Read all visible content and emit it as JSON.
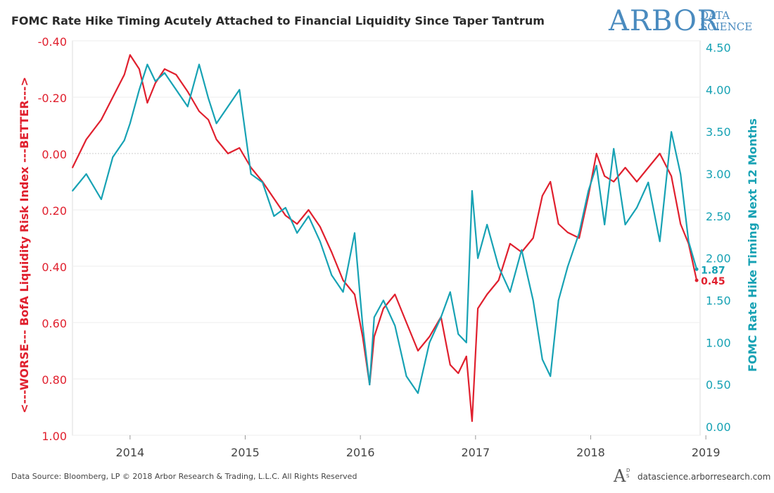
{
  "header": {
    "title": "FOMC Rate Hike Timing Acutely Attached to Financial Liquidity Since Taper Tantrum",
    "logo_word": "ARBOR",
    "logo_sub_line1": "DATA",
    "logo_sub_line2": "SCIENCE"
  },
  "footer": {
    "source": "Data Source: Bloomberg, LP © 2018 Arbor Research & Trading, L.L.C. All Rights Reserved",
    "logo_mark": "A",
    "logo_mark_sub": "D S",
    "url": "datascience.arborresearch.com"
  },
  "colors": {
    "red": "#e0202e",
    "teal": "#17a2b4",
    "logo": "#4a8bbf",
    "grid": "#eeeeee",
    "zero_line": "#cccccc"
  },
  "chart_data": {
    "type": "line",
    "title": "FOMC Rate Hike Timing Acutely Attached to Financial Liquidity Since Taper Tantrum",
    "x_ticks": [
      "2014",
      "2015",
      "2016",
      "2017",
      "2018",
      "2019"
    ],
    "x_range": [
      2013.5,
      2018.95
    ],
    "y_left": {
      "label": "<---WORSE--- BofA Liquidity Risk Index ---BETTER--->",
      "inverted": true,
      "range": [
        -0.4,
        1.0
      ],
      "ticks": [
        -0.4,
        -0.2,
        0.0,
        0.2,
        0.4,
        0.6,
        0.8,
        1.0
      ],
      "tick_labels": [
        "-0.40",
        "-0.20",
        "0.00",
        "0.20",
        "0.40",
        "0.60",
        "0.80",
        "1.00"
      ]
    },
    "y_right": {
      "label": "FOMC Rate Hike Timing Next 12 Months",
      "range": [
        -0.1,
        4.58
      ],
      "ticks": [
        0.0,
        0.5,
        1.0,
        1.5,
        2.0,
        2.5,
        3.0,
        3.5,
        4.0,
        4.5
      ],
      "tick_labels": [
        "0.00",
        "0.50",
        "1.00",
        "1.50",
        "2.00",
        "2.50",
        "3.00",
        "3.50",
        "4.00",
        "4.50"
      ]
    },
    "grid": true,
    "series": [
      {
        "name": "BofA Liquidity Risk Index",
        "axis": "left",
        "color": "#e0202e",
        "x": [
          2013.5,
          2013.62,
          2013.75,
          2013.85,
          2013.95,
          2014.0,
          2014.08,
          2014.15,
          2014.22,
          2014.3,
          2014.4,
          2014.5,
          2014.6,
          2014.68,
          2014.75,
          2014.85,
          2014.95,
          2015.05,
          2015.15,
          2015.25,
          2015.35,
          2015.45,
          2015.55,
          2015.65,
          2015.75,
          2015.85,
          2015.95,
          2016.02,
          2016.08,
          2016.12,
          2016.2,
          2016.3,
          2016.4,
          2016.5,
          2016.6,
          2016.7,
          2016.78,
          2016.85,
          2016.92,
          2016.97,
          2017.02,
          2017.1,
          2017.2,
          2017.3,
          2017.4,
          2017.5,
          2017.58,
          2017.65,
          2017.72,
          2017.8,
          2017.9,
          2017.98,
          2018.05,
          2018.12,
          2018.2,
          2018.3,
          2018.4,
          2018.5,
          2018.6,
          2018.7,
          2018.78,
          2018.85,
          2018.92
        ],
        "values": [
          0.05,
          -0.05,
          -0.12,
          -0.2,
          -0.28,
          -0.35,
          -0.3,
          -0.18,
          -0.25,
          -0.3,
          -0.28,
          -0.22,
          -0.15,
          -0.12,
          -0.05,
          0.0,
          -0.02,
          0.05,
          0.1,
          0.16,
          0.22,
          0.25,
          0.2,
          0.26,
          0.35,
          0.45,
          0.5,
          0.65,
          0.82,
          0.65,
          0.55,
          0.5,
          0.6,
          0.7,
          0.65,
          0.58,
          0.75,
          0.78,
          0.72,
          0.95,
          0.55,
          0.5,
          0.45,
          0.32,
          0.35,
          0.3,
          0.15,
          0.1,
          0.25,
          0.28,
          0.3,
          0.15,
          0.0,
          0.08,
          0.1,
          0.05,
          0.1,
          0.05,
          0.0,
          0.08,
          0.25,
          0.32,
          0.45
        ]
      },
      {
        "name": "FOMC Rate Hike Timing Next 12 Months",
        "axis": "right",
        "color": "#17a2b4",
        "x": [
          2013.5,
          2013.62,
          2013.75,
          2013.85,
          2013.95,
          2014.0,
          2014.08,
          2014.15,
          2014.22,
          2014.3,
          2014.4,
          2014.5,
          2014.6,
          2014.68,
          2014.75,
          2014.85,
          2014.95,
          2015.05,
          2015.15,
          2015.25,
          2015.35,
          2015.45,
          2015.55,
          2015.65,
          2015.75,
          2015.85,
          2015.95,
          2016.02,
          2016.08,
          2016.12,
          2016.2,
          2016.3,
          2016.4,
          2016.5,
          2016.6,
          2016.7,
          2016.78,
          2016.85,
          2016.92,
          2016.97,
          2017.02,
          2017.1,
          2017.2,
          2017.3,
          2017.4,
          2017.5,
          2017.58,
          2017.65,
          2017.72,
          2017.8,
          2017.9,
          2017.98,
          2018.05,
          2018.12,
          2018.2,
          2018.3,
          2018.4,
          2018.5,
          2018.6,
          2018.7,
          2018.78,
          2018.85,
          2018.92
        ],
        "values": [
          2.8,
          3.0,
          2.7,
          3.2,
          3.4,
          3.6,
          4.0,
          4.3,
          4.1,
          4.2,
          4.0,
          3.8,
          4.3,
          3.9,
          3.6,
          3.8,
          4.0,
          3.0,
          2.9,
          2.5,
          2.6,
          2.3,
          2.5,
          2.2,
          1.8,
          1.6,
          2.3,
          1.2,
          0.5,
          1.3,
          1.5,
          1.2,
          0.6,
          0.4,
          1.0,
          1.3,
          1.6,
          1.1,
          1.0,
          2.8,
          2.0,
          2.4,
          1.9,
          1.6,
          2.1,
          1.5,
          0.8,
          0.6,
          1.5,
          1.9,
          2.3,
          2.8,
          3.1,
          2.4,
          3.3,
          2.4,
          2.6,
          2.9,
          2.2,
          3.5,
          3.0,
          2.2,
          1.87
        ]
      }
    ],
    "end_labels": [
      {
        "series": "FOMC Rate Hike Timing Next 12 Months",
        "text": "1.87",
        "value": 1.87
      },
      {
        "series": "BofA Liquidity Risk Index",
        "text": "0.45",
        "value": 0.45
      }
    ]
  }
}
